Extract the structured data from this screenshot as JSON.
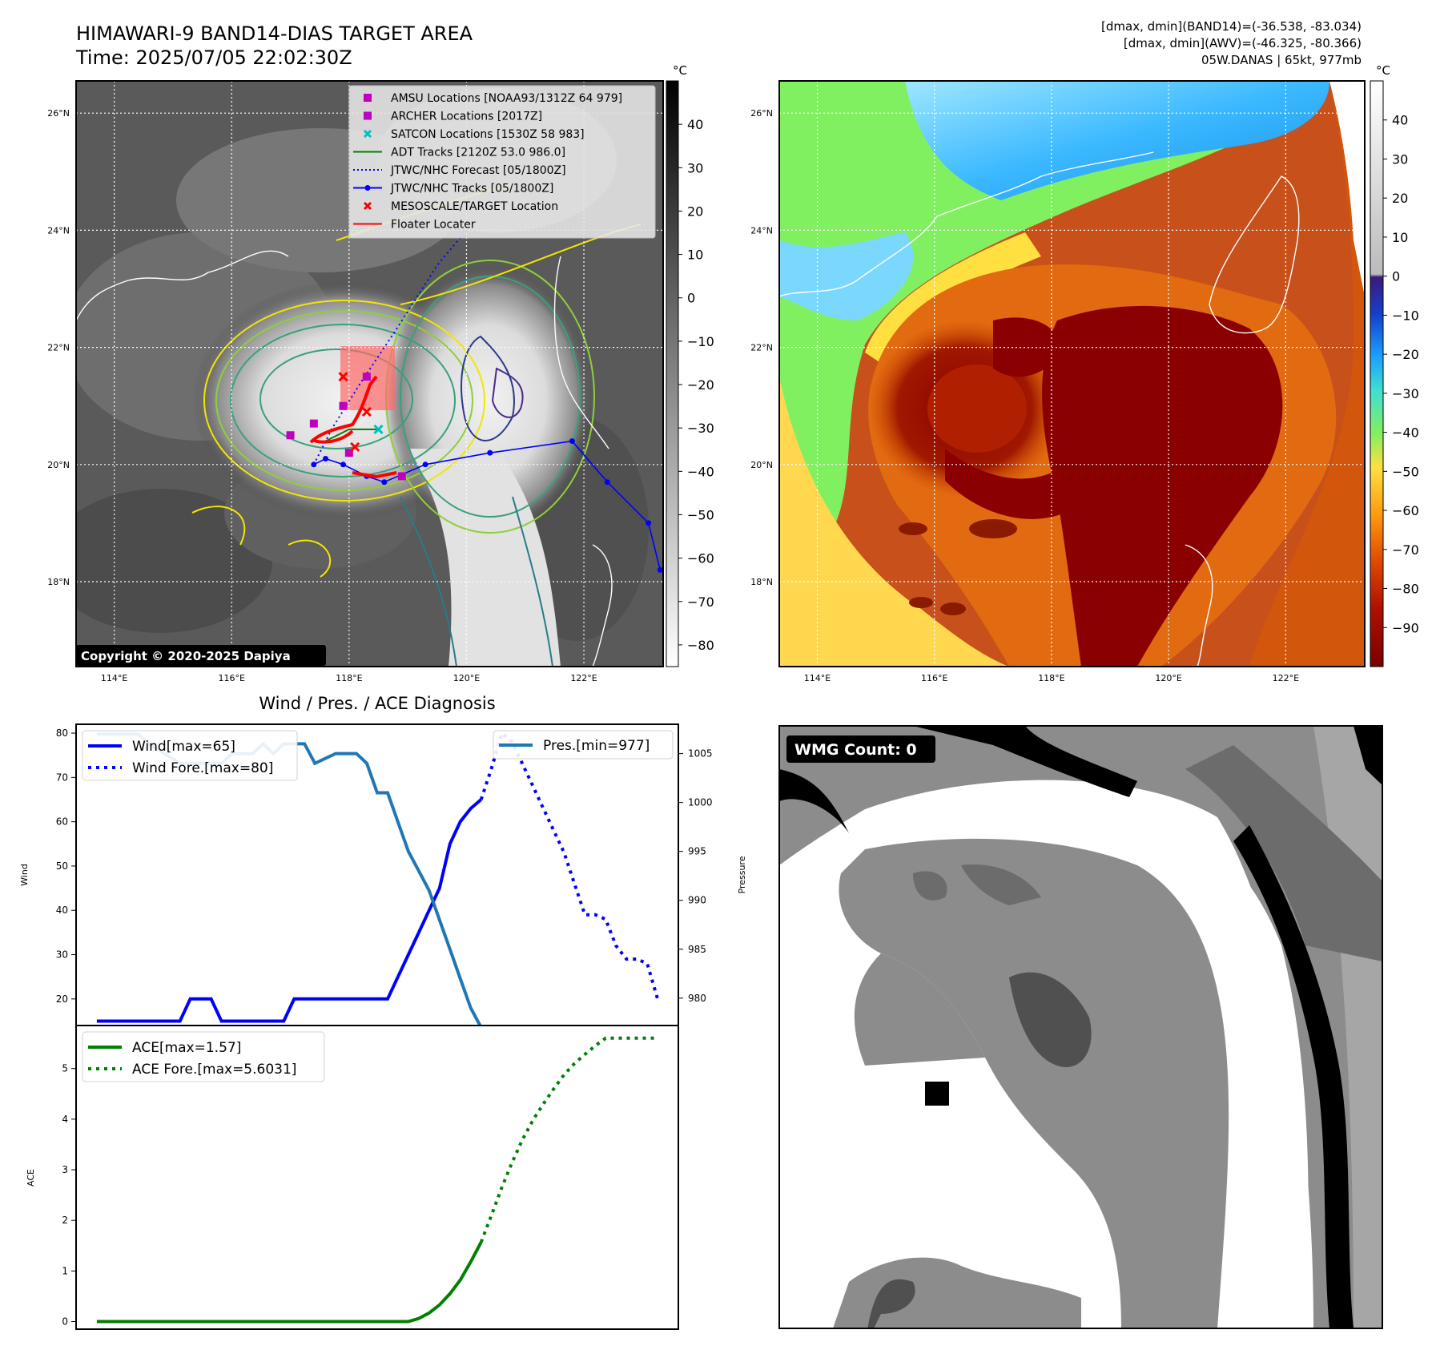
{
  "header": {
    "title_line1": "HIMAWARI-9 BAND14-DIAS TARGET AREA",
    "title_line2": "Time: 2025/07/05 22:02:30Z",
    "info_line1": "[dmax, dmin](BAND14)=(-36.538, -83.034)",
    "info_line2": "[dmax, dmin](AWV)=(-46.325, -80.366)",
    "info_line3": "05W.DANAS | 65kt, 977mb"
  },
  "map_left": {
    "lat_labels": [
      "26°N",
      "24°N",
      "22°N",
      "20°N",
      "18°N"
    ],
    "lat_values": [
      26,
      24,
      22,
      20,
      18
    ],
    "lon_labels": [
      "114°E",
      "116°E",
      "118°E",
      "120°E",
      "122°E"
    ],
    "lon_values": [
      114,
      116,
      118,
      120,
      122
    ],
    "lat_range": [
      16.55,
      26.55
    ],
    "lon_range": [
      113.35,
      123.35
    ],
    "colorbar_unit": "°C",
    "colorbar_ticks": [
      "40",
      "30",
      "20",
      "10",
      "0",
      "−10",
      "−20",
      "−30",
      "−40",
      "−50",
      "−60",
      "−70",
      "−80"
    ],
    "colorbar_values": [
      40,
      30,
      20,
      10,
      0,
      -10,
      -20,
      -30,
      -40,
      -50,
      -60,
      -70,
      -80
    ],
    "colorbar_range": [
      -85,
      50
    ],
    "copyright": "Copyright © 2020-2025 Dapiya",
    "legend": [
      {
        "label": "AMSU Locations [NOAA93/1312Z 64 979]",
        "marker": "square",
        "color": "#bf00bf"
      },
      {
        "label": "ARCHER Locations [2017Z]",
        "marker": "square",
        "color": "#bf00bf"
      },
      {
        "label": "SATCON Locations [1530Z 58 983]",
        "marker": "x",
        "color": "#00bfbf"
      },
      {
        "label": "ADT Tracks [2120Z 53.0 986.0]",
        "marker": "line",
        "color": "#008000"
      },
      {
        "label": "JTWC/NHC Forecast [05/1800Z]",
        "marker": "dotted",
        "color": "#0000ff"
      },
      {
        "label": "JTWC/NHC Tracks [05/1800Z]",
        "marker": "line-dot",
        "color": "#0000ff"
      },
      {
        "label": "MESOSCALE/TARGET Location",
        "marker": "x",
        "color": "#ff0000"
      },
      {
        "label": "Floater Locater",
        "marker": "line",
        "color": "#ff0000"
      }
    ],
    "jtwc_track": [
      [
        123.3,
        18.2
      ],
      [
        123.1,
        19.0
      ],
      [
        122.4,
        19.7
      ],
      [
        121.8,
        20.4
      ],
      [
        120.4,
        20.2
      ],
      [
        119.3,
        20.0
      ],
      [
        118.6,
        19.7
      ],
      [
        118.3,
        19.8
      ],
      [
        117.9,
        20.0
      ],
      [
        117.6,
        20.1
      ],
      [
        117.4,
        20.0
      ]
    ],
    "jtwc_forecast": [
      [
        117.4,
        20.0
      ],
      [
        117.7,
        20.6
      ],
      [
        118.2,
        21.4
      ],
      [
        118.8,
        22.3
      ],
      [
        119.5,
        23.4
      ],
      [
        120.0,
        24.0
      ]
    ],
    "amsu_points": [
      [
        117.0,
        20.5
      ],
      [
        117.4,
        20.7
      ],
      [
        117.9,
        21.0
      ],
      [
        118.3,
        21.5
      ],
      [
        118.0,
        20.2
      ],
      [
        118.9,
        19.8
      ]
    ],
    "satcon_points": [
      [
        118.5,
        20.6
      ]
    ],
    "target_points": [
      [
        117.9,
        21.5
      ],
      [
        118.1,
        20.3
      ],
      [
        118.3,
        20.9
      ]
    ],
    "adt_track": [
      [
        117.6,
        20.4
      ],
      [
        118.0,
        20.6
      ],
      [
        118.5,
        20.6
      ]
    ]
  },
  "map_right": {
    "lat_labels": [
      "26°N",
      "24°N",
      "22°N",
      "20°N",
      "18°N"
    ],
    "lat_values": [
      26,
      24,
      22,
      20,
      18
    ],
    "lon_labels": [
      "114°E",
      "116°E",
      "118°E",
      "120°E",
      "122°E"
    ],
    "lon_values": [
      114,
      116,
      118,
      120,
      122
    ],
    "lat_range": [
      16.55,
      26.55
    ],
    "lon_range": [
      113.35,
      123.35
    ],
    "colorbar_unit": "°C",
    "colorbar_ticks": [
      "40",
      "30",
      "20",
      "10",
      "0",
      "−10",
      "−20",
      "−30",
      "−40",
      "−50",
      "−60",
      "−70",
      "−80",
      "−90"
    ],
    "colorbar_values": [
      40,
      30,
      20,
      10,
      0,
      -10,
      -20,
      -30,
      -40,
      -50,
      -60,
      -70,
      -80,
      -90
    ],
    "colorbar_range": [
      -100,
      50
    ]
  },
  "chart_data": [
    {
      "type": "line",
      "title": "Wind / Pres. / ACE Diagnosis",
      "ylabel": "Wind",
      "ylabel_right": "Pressure",
      "ylim": [
        14,
        82
      ],
      "ylim_right": [
        977.2,
        1008
      ],
      "yticks": [
        20,
        30,
        40,
        50,
        60,
        70,
        80
      ],
      "yticks_right": [
        980,
        985,
        990,
        995,
        1000,
        1005
      ],
      "xlim": [
        -2,
        56
      ],
      "series": [
        {
          "name": "Wind[max=65]",
          "color": "#0000ff",
          "style": "solid",
          "x": [
            0,
            8,
            9,
            11,
            12,
            18,
            19,
            28,
            29,
            30,
            31,
            32,
            33,
            34,
            35,
            36,
            37
          ],
          "y": [
            15,
            15,
            20,
            20,
            15,
            15,
            20,
            20,
            25,
            30,
            35,
            40,
            45,
            55,
            60,
            63,
            65
          ]
        },
        {
          "name": "Wind Fore.[max=80]",
          "color": "#0000ff",
          "style": "dotted",
          "x": [
            37,
            38,
            39,
            40,
            41,
            42,
            43,
            44,
            45,
            46,
            47,
            48,
            49,
            50,
            51,
            52,
            53,
            54
          ],
          "y": [
            65,
            72,
            80,
            78,
            73,
            68,
            63,
            58,
            53,
            46,
            39,
            39,
            38,
            32,
            29,
            29,
            28,
            20
          ]
        },
        {
          "name": "Pres.[min=977]",
          "color": "#1f77b4",
          "style": "solid",
          "axis": "right",
          "x": [
            0,
            4,
            5,
            8,
            9,
            12,
            13,
            14,
            15,
            16,
            17,
            18,
            19,
            20,
            21,
            23,
            24,
            25,
            26,
            27,
            28,
            29,
            30,
            31,
            32,
            33,
            34,
            35,
            36,
            37
          ],
          "y": [
            1007,
            1007,
            1006,
            1004,
            1004,
            1004,
            1005,
            1005,
            1005,
            1006,
            1005,
            1006,
            1006,
            1006,
            1004,
            1005,
            1005,
            1005,
            1004,
            1001,
            1001,
            998,
            995,
            993,
            991,
            988,
            985,
            982,
            979,
            977
          ]
        }
      ]
    },
    {
      "type": "line",
      "ylabel": "ACE",
      "ylim": [
        -0.15,
        5.85
      ],
      "yticks": [
        0,
        1,
        2,
        3,
        4,
        5
      ],
      "xlim": [
        -2,
        56
      ],
      "series": [
        {
          "name": "ACE[max=1.57]",
          "color": "#008000",
          "style": "solid",
          "x": [
            0,
            10,
            20,
            28,
            30,
            31,
            32,
            33,
            34,
            35,
            36,
            37
          ],
          "y": [
            0,
            0,
            0,
            0,
            0,
            0.06,
            0.17,
            0.33,
            0.55,
            0.82,
            1.18,
            1.57
          ]
        },
        {
          "name": "ACE Fore.[max=5.6031]",
          "color": "#008000",
          "style": "dotted",
          "x": [
            37,
            38,
            39,
            40,
            41,
            42,
            43,
            44,
            45,
            46,
            47,
            48,
            49,
            50,
            51,
            52,
            53,
            54
          ],
          "y": [
            1.57,
            2.1,
            2.65,
            3.15,
            3.6,
            3.98,
            4.3,
            4.6,
            4.88,
            5.1,
            5.28,
            5.45,
            5.6,
            5.6,
            5.6,
            5.6,
            5.6,
            5.6
          ]
        }
      ]
    }
  ],
  "wmg_panel": {
    "label": "WMG Count: 0"
  }
}
